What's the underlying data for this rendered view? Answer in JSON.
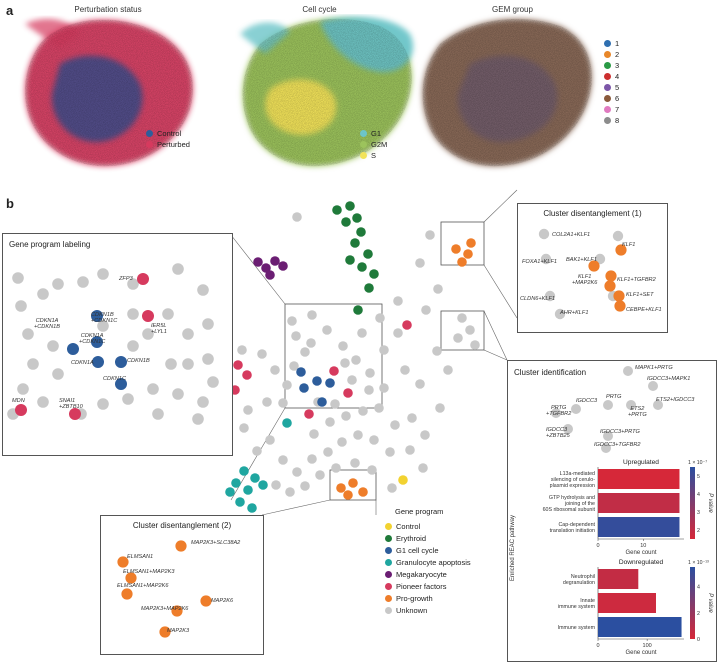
{
  "panel_a": {
    "letter": "a",
    "umaps": [
      {
        "title": "Perturbation status",
        "legend": [
          {
            "label": "Control",
            "color": "#2d5d9b"
          },
          {
            "label": "Perturbed",
            "color": "#d63a5e"
          }
        ]
      },
      {
        "title": "Cell cycle",
        "legend": [
          {
            "label": "G1",
            "color": "#6cc5c9"
          },
          {
            "label": "G2M",
            "color": "#9cc35c"
          },
          {
            "label": "S",
            "color": "#f2e35a"
          }
        ]
      },
      {
        "title": "GEM group",
        "legend": [
          {
            "label": "1",
            "color": "#2f6fb0"
          },
          {
            "label": "2",
            "color": "#e8872a"
          },
          {
            "label": "3",
            "color": "#2a9a45"
          },
          {
            "label": "4",
            "color": "#cc2f2f"
          },
          {
            "label": "5",
            "color": "#7c56a8"
          },
          {
            "label": "6",
            "color": "#8a5a3c"
          },
          {
            "label": "7",
            "color": "#e07ac0"
          },
          {
            "label": "8",
            "color": "#8c8c8c"
          }
        ]
      }
    ]
  },
  "panel_b": {
    "letter": "b",
    "gene_program_labeling": {
      "title": "Gene program labeling",
      "labels": [
        "ZFP3",
        "CDKN1A\n+CDKN1B",
        "CDKN1B\n+CDKN1C",
        "CDKN1A\n+CDKN1C",
        "CDKN1A",
        "CDKN1B",
        "CDKN1C",
        "IER5L\n+LYL1",
        "MDN",
        "SNAI1\n+ZBTB10"
      ]
    },
    "cluster1": {
      "title": "Cluster disentanglement (1)",
      "labels": [
        "COL2A1+KLF1",
        "KLF1",
        "FOXA1+KLF1",
        "BAK1+KLF1",
        "KLF1\n+MAP2K6",
        "KLF1+TGFBR2",
        "KLF1+SET",
        "CLDN6+KLF1",
        "AHR+KLF1",
        "CEBPE+KLF1"
      ]
    },
    "cluster2": {
      "title": "Cluster disentanglement (2)",
      "labels": [
        "MAP2K3+SLC38A2",
        "ELMSAN1",
        "ELMSAN1+MAP2K3",
        "ELMSAN1+MAP2K6",
        "MAP2K6",
        "MAP2K3+MAP2K6",
        "MAP2K3"
      ]
    },
    "cluster_id": {
      "title": "Cluster identification",
      "labels": [
        "MAPK1+PRTG",
        "IGDCC3+MAPK1",
        "PRTG",
        "IGDCC3",
        "PRTG\n+TGFBR2",
        "ETS2\n+PRTG",
        "ETS2+IGDCC3",
        "IGDCC3\n+ZBTB25",
        "IGDCC3+PRTG",
        "IGDCC3+TGFBR2"
      ]
    },
    "gene_program_legend": {
      "title": "Gene program",
      "items": [
        {
          "label": "Control",
          "color": "#f2d230"
        },
        {
          "label": "Erythroid",
          "color": "#1f7a3a"
        },
        {
          "label": "G1 cell cycle",
          "color": "#2d5d9b"
        },
        {
          "label": "Granulocyte apoptosis",
          "color": "#1fa6a0"
        },
        {
          "label": "Megakaryocyte",
          "color": "#6b1e73"
        },
        {
          "label": "Pioneer factors",
          "color": "#d63a5e"
        },
        {
          "label": "Pro-growth",
          "color": "#ee7d2a"
        },
        {
          "label": "Unknown",
          "color": "#c8c8c8"
        }
      ]
    },
    "color_scale": {
      "low": "#d62839",
      "high": "#2b4fa0"
    }
  },
  "chart_data": [
    {
      "type": "bar",
      "title": "Upregulated",
      "categories": [
        "L13a-mediated silencing of ceruloplasmid expression",
        "GTP hydrolysis and joining of the 60S ribosomal subunit",
        "Cap-dependent translation initiation"
      ],
      "category_lines": [
        [
          "L13a-mediated",
          "silencing of cerulo-",
          "plasmid expression"
        ],
        [
          "GTP hydrolysis and",
          "joining of the",
          "60S ribosomal subunit"
        ],
        [
          "Cap-dependent",
          "translation initiation"
        ]
      ],
      "values": [
        18,
        18,
        18
      ],
      "p_values": [
        1.5,
        2.0,
        5.3
      ],
      "xlabel": "Gene count",
      "ylabel": "Enriched REAC pathway",
      "colorbar_label": "P value",
      "colorbar_exponent": "1 × 10⁻⁷",
      "colorbar_ticks": [
        "5",
        "4",
        "3",
        "2"
      ],
      "colorbar_range": [
        1.5,
        5.5
      ],
      "xlim": [
        0,
        19
      ],
      "xticks": [
        0,
        10
      ]
    },
    {
      "type": "bar",
      "title": "Downregulated",
      "categories": [
        "Neutrophil degranulation",
        "Innate immune system",
        "Immune system"
      ],
      "category_lines": [
        [
          "Neutrophil",
          "degranulation"
        ],
        [
          "Innate",
          "immune system"
        ],
        [
          "Immune system"
        ]
      ],
      "values": [
        82,
        118,
        170
      ],
      "p_values": [
        0.6,
        0.3,
        5.5
      ],
      "xlabel": "Gene count",
      "colorbar_label": "P value",
      "colorbar_exponent": "1 × 10⁻¹³",
      "colorbar_ticks": [
        "4",
        "2",
        "0"
      ],
      "colorbar_range": [
        0,
        5.5
      ],
      "xlim": [
        0,
        175
      ],
      "xticks": [
        0,
        100
      ]
    }
  ]
}
